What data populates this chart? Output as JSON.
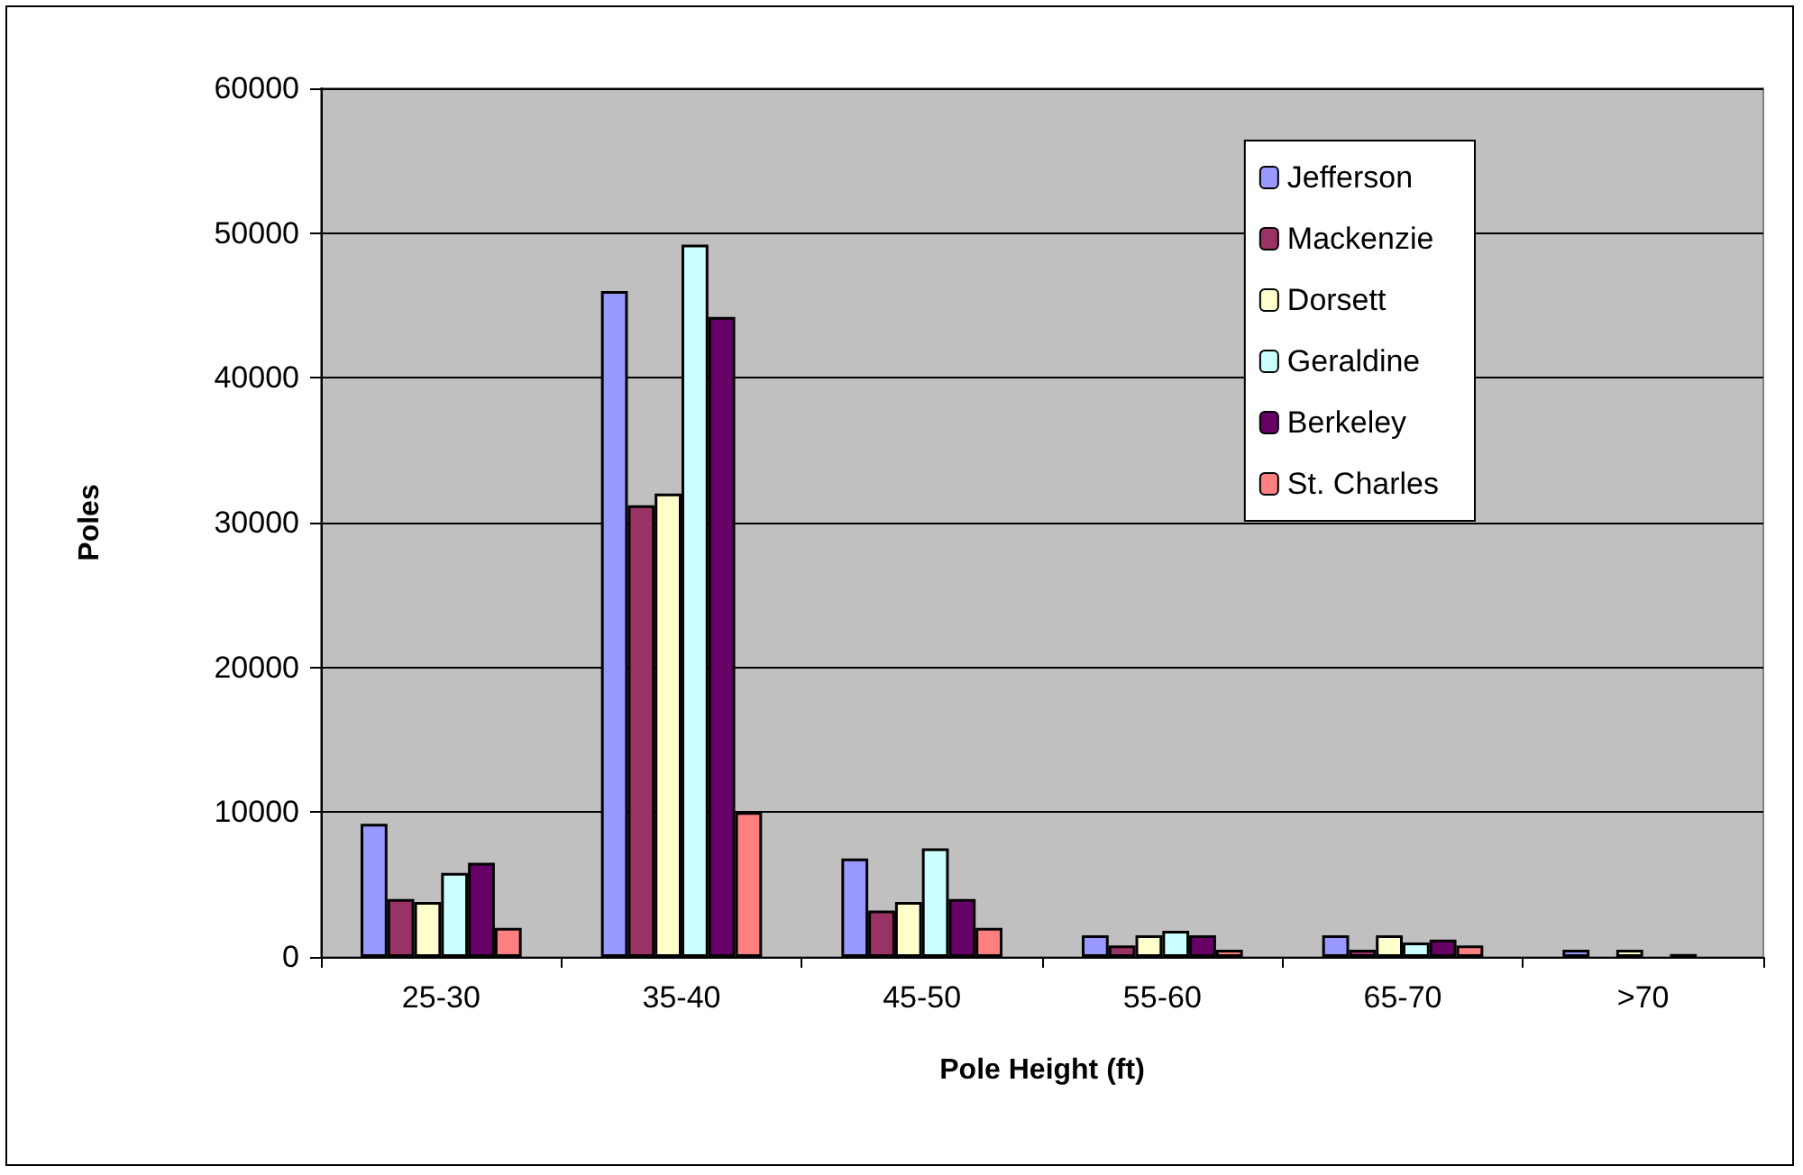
{
  "chart_data": {
    "type": "bar",
    "xlabel": "Pole Height (ft)",
    "ylabel": "Poles",
    "categories": [
      "25-30",
      "35-40",
      "45-50",
      "55-60",
      "65-70",
      ">70"
    ],
    "series": [
      {
        "name": "Jefferson",
        "color": "#9999ff",
        "values": [
          9200,
          46000,
          6800,
          1500,
          1500,
          500
        ]
      },
      {
        "name": "Mackenzie",
        "color": "#993366",
        "values": [
          4000,
          31200,
          3200,
          800,
          500,
          null
        ]
      },
      {
        "name": "Dorsett",
        "color": "#ffffcc",
        "values": [
          3800,
          32000,
          3800,
          1500,
          1500,
          500
        ]
      },
      {
        "name": "Geraldine",
        "color": "#ccffff",
        "values": [
          5800,
          49200,
          7500,
          1800,
          1000,
          null
        ]
      },
      {
        "name": "Berkeley",
        "color": "#660066",
        "values": [
          6500,
          44200,
          4000,
          1500,
          1200,
          200
        ]
      },
      {
        "name": "St. Charles",
        "color": "#ff8080",
        "values": [
          2000,
          10000,
          2000,
          500,
          800,
          null
        ]
      }
    ],
    "ylim": [
      0,
      60000
    ],
    "yticks": [
      0,
      10000,
      20000,
      30000,
      40000,
      50000,
      60000
    ],
    "grid": "y",
    "legend": "top right"
  }
}
